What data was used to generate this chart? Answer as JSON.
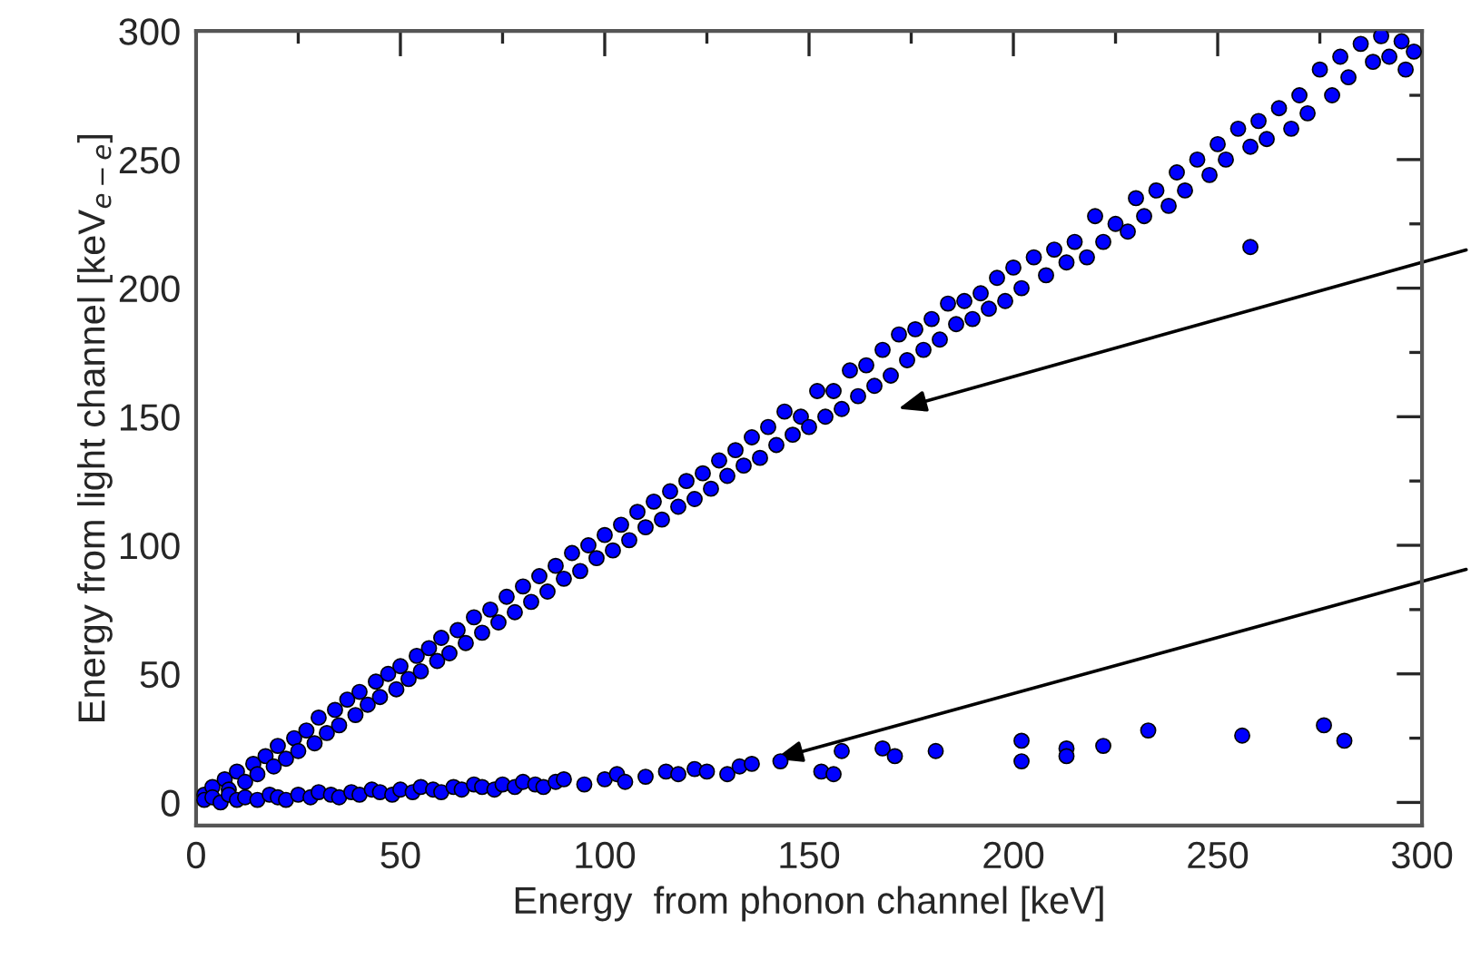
{
  "chart_data": {
    "type": "scatter",
    "xlabel": "Energy  from phonon channel [keV]",
    "ylabel": "Energy from light channel [keV$_{e−e}$]",
    "xlim": [
      0,
      300
    ],
    "ylim": [
      -9,
      300
    ],
    "xticks": [
      0,
      {
        "value": 25,
        "label": null
      },
      50,
      {
        "value": 75,
        "label": null
      },
      100,
      {
        "value": 125,
        "label": null
      },
      150,
      {
        "value": 175,
        "label": null
      },
      200,
      {
        "value": 225,
        "label": null
      },
      250,
      {
        "value": 275,
        "label": null
      },
      300
    ],
    "yticks": [
      0,
      {
        "value": 25,
        "label": null
      },
      50,
      {
        "value": 75,
        "label": null
      },
      100,
      {
        "value": 125,
        "label": null
      },
      150,
      {
        "value": 175,
        "label": null
      },
      200,
      {
        "value": 225,
        "label": null
      },
      250,
      {
        "value": 275,
        "label": null
      },
      300
    ],
    "grid": false,
    "marker": "circle",
    "series": [
      {
        "color": "#0000ff",
        "x": [
          2,
          4,
          7,
          8,
          10,
          12,
          14,
          15,
          17,
          19,
          20,
          22,
          24,
          25,
          27,
          29,
          30,
          32,
          34,
          35,
          37,
          39,
          40,
          42,
          44,
          45,
          47,
          49,
          50,
          52,
          54,
          55,
          57,
          59,
          60,
          62,
          64,
          66,
          68,
          70,
          72,
          74,
          76,
          78,
          80,
          82,
          84,
          86,
          88,
          90,
          92,
          94,
          96,
          98,
          100,
          102,
          104,
          106,
          108,
          110,
          112,
          114,
          116,
          118,
          120,
          122,
          124,
          126,
          128,
          130,
          132,
          134,
          136,
          138,
          140,
          142,
          144,
          146,
          148,
          150,
          152,
          154,
          156,
          158,
          160,
          162,
          164,
          166,
          168,
          170,
          172,
          174,
          176,
          178,
          180,
          182,
          184,
          186,
          188,
          190,
          192,
          194,
          196,
          198,
          200,
          202,
          205,
          208,
          210,
          213,
          215,
          218,
          220,
          222,
          225,
          228,
          230,
          232,
          235,
          238,
          240,
          242,
          245,
          248,
          250,
          252,
          255,
          258,
          260,
          262,
          265,
          268,
          270,
          272,
          275,
          278,
          280,
          282,
          285,
          288,
          290,
          292,
          295,
          298,
          296,
          258
        ],
        "values": [
          3,
          6,
          9,
          5,
          12,
          8,
          15,
          11,
          18,
          14,
          22,
          17,
          25,
          20,
          28,
          23,
          33,
          27,
          36,
          30,
          40,
          34,
          43,
          38,
          47,
          41,
          50,
          44,
          53,
          48,
          57,
          51,
          60,
          55,
          64,
          58,
          67,
          62,
          72,
          66,
          75,
          70,
          80,
          74,
          84,
          78,
          88,
          82,
          92,
          87,
          97,
          90,
          100,
          95,
          104,
          98,
          108,
          102,
          113,
          107,
          117,
          110,
          121,
          115,
          125,
          118,
          128,
          122,
          133,
          127,
          137,
          131,
          142,
          134,
          146,
          139,
          152,
          143,
          150,
          146,
          160,
          150,
          160,
          153,
          168,
          158,
          170,
          162,
          176,
          166,
          182,
          172,
          184,
          176,
          188,
          180,
          194,
          186,
          195,
          188,
          198,
          192,
          204,
          195,
          208,
          200,
          212,
          205,
          215,
          210,
          218,
          212,
          228,
          218,
          225,
          222,
          235,
          228,
          238,
          232,
          245,
          238,
          250,
          244,
          256,
          250,
          262,
          255,
          265,
          258,
          270,
          262,
          275,
          268,
          285,
          275,
          290,
          282,
          295,
          288,
          298,
          290,
          296,
          292,
          285,
          216
        ]
      },
      {
        "color": "#0000ff",
        "x": [
          2,
          4,
          6,
          8,
          10,
          12,
          15,
          18,
          20,
          22,
          25,
          28,
          30,
          33,
          35,
          38,
          40,
          43,
          45,
          48,
          50,
          53,
          55,
          58,
          60,
          63,
          65,
          68,
          70,
          73,
          75,
          78,
          80,
          83,
          85,
          88,
          90,
          95,
          100,
          103,
          105,
          110,
          115,
          118,
          122,
          125,
          130,
          133,
          136,
          143,
          153,
          156,
          158,
          168,
          171,
          181,
          202,
          202,
          213,
          213,
          222,
          233,
          256,
          276,
          281
        ],
        "values": [
          1,
          2,
          0,
          3,
          1,
          2,
          1,
          3,
          2,
          1,
          3,
          2,
          4,
          3,
          2,
          4,
          3,
          5,
          4,
          3,
          5,
          4,
          6,
          5,
          4,
          6,
          5,
          7,
          6,
          5,
          7,
          6,
          8,
          7,
          6,
          8,
          9,
          7,
          9,
          11,
          8,
          10,
          12,
          11,
          13,
          12,
          11,
          14,
          15,
          16,
          12,
          11,
          20,
          21,
          18,
          20,
          24,
          16,
          21,
          18,
          22,
          28,
          26,
          30,
          24
        ]
      }
    ]
  }
}
